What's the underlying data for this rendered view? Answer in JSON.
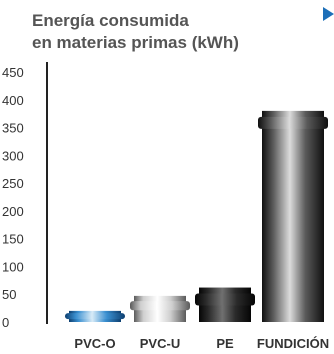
{
  "chart_data": {
    "type": "bar",
    "title_lines": [
      "Energía consumida",
      "en materias primas (kWh)"
    ],
    "categories": [
      "PVC-O",
      "PVC-U",
      "PE",
      "FUNDICIÓN"
    ],
    "values": [
      20,
      47,
      62,
      380
    ],
    "ylim": [
      0,
      450
    ],
    "yticks": [
      0,
      50,
      100,
      150,
      200,
      250,
      300,
      350,
      400,
      450
    ],
    "grid": false,
    "legend": "none"
  },
  "colors": {
    "title": "#555555",
    "axis": "#222222",
    "tick_label": "#333333",
    "marker": "#1d6fb8",
    "bars": [
      {
        "dark": "#0d3f70",
        "mid": "#3a8fd0",
        "light": "#d8ebf7"
      },
      {
        "dark": "#5a5a5a",
        "mid": "#cfcfcf",
        "light": "#ffffff"
      },
      {
        "dark": "#050505",
        "mid": "#2a2a2a",
        "light": "#707070"
      },
      {
        "dark": "#101010",
        "mid": "#5a5a5a",
        "light": "#dcdcdc"
      }
    ]
  },
  "icons": {
    "marker": "triangle-right-icon"
  }
}
